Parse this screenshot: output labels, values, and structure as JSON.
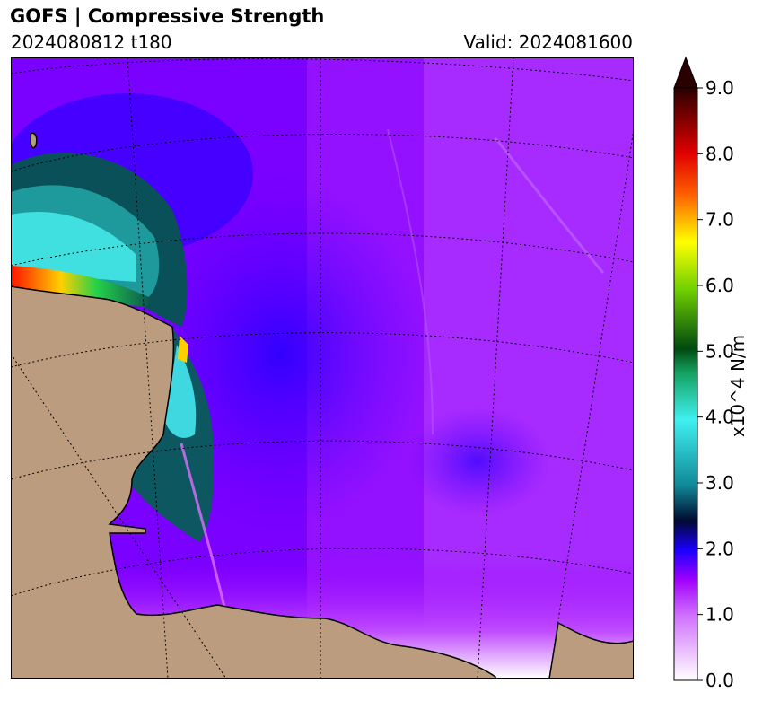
{
  "header": {
    "title": "GOFS  |  Compressive Strength",
    "init_label": "2024080812 t180",
    "valid_label": "Valid: 2024081600"
  },
  "colorbar": {
    "units_label": "x10^4 N/m",
    "ticks": [
      "0.0",
      "1.0",
      "2.0",
      "3.0",
      "4.0",
      "5.0",
      "6.0",
      "7.0",
      "8.0",
      "9.0"
    ],
    "min": 0,
    "max": 9,
    "extend": "max"
  },
  "map": {
    "land_color": "#bc9c7e",
    "coastline_color": "#000000",
    "gridlines": "dotted"
  }
}
